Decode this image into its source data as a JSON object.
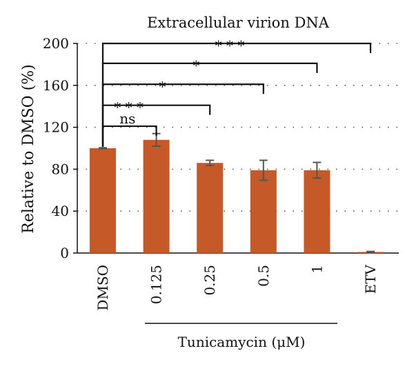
{
  "chart_data": {
    "type": "bar",
    "title": "Extracellular virion DNA",
    "ylabel": "Relative to DMSO (%)",
    "xlabel": "",
    "ylim": [
      0,
      200
    ],
    "yticks": [
      0,
      40,
      80,
      120,
      160,
      200
    ],
    "grid": "horizontal dotted",
    "bar_color": "#c55a28",
    "errorbar_color": "#555555",
    "categories": [
      "DMSO",
      "0.125",
      "0.25",
      "0.5",
      "1",
      "ETV"
    ],
    "values": [
      100,
      108,
      86,
      79,
      79,
      1
    ],
    "errors": [
      0.5,
      6,
      2.5,
      9.5,
      7.5,
      0.5
    ],
    "group_label": "Tunicamycin (μM)",
    "group_categories": [
      "0.125",
      "0.25",
      "0.5",
      "1"
    ],
    "comparisons": [
      {
        "from": "DMSO",
        "to": "0.125",
        "label": "ns",
        "level": 121
      },
      {
        "from": "DMSO",
        "to": "0.25",
        "label": "* * *",
        "level": 141
      },
      {
        "from": "DMSO",
        "to": "0.5",
        "label": "*",
        "level": 161
      },
      {
        "from": "DMSO",
        "to": "1",
        "label": "*",
        "level": 181
      },
      {
        "from": "DMSO",
        "to": "ETV",
        "label": "* * *",
        "level": 200
      }
    ]
  }
}
